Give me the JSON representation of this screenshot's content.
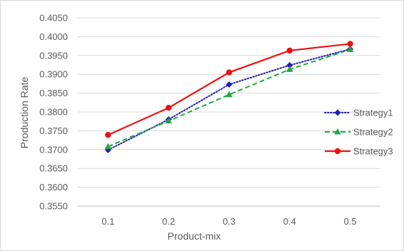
{
  "chart_data": {
    "type": "line",
    "title": "",
    "xlabel": "Product-mix",
    "ylabel": "Production Rate",
    "categories": [
      "0.1",
      "0.2",
      "0.3",
      "0.4",
      "0.5"
    ],
    "ylim": [
      0.355,
      0.405
    ],
    "ytick_step": 0.005,
    "yticks": [
      "0.3550",
      "0.3600",
      "0.3650",
      "0.3700",
      "0.3750",
      "0.3800",
      "0.3850",
      "0.3900",
      "0.3950",
      "0.4000",
      "0.4050"
    ],
    "grid": "horizontal",
    "legend_position": "right",
    "series": [
      {
        "name": "Strategy1",
        "values": [
          0.3699,
          0.378,
          0.3873,
          0.3924,
          0.3967
        ],
        "color": "#1f1fb4",
        "line_style": "dotted",
        "marker": "diamond"
      },
      {
        "name": "Strategy2",
        "values": [
          0.3708,
          0.3776,
          0.3846,
          0.3913,
          0.3966
        ],
        "color": "#22a845",
        "line_style": "dashed",
        "marker": "triangle"
      },
      {
        "name": "Strategy3",
        "values": [
          0.3739,
          0.3811,
          0.3905,
          0.3963,
          0.3981
        ],
        "color": "#ee1111",
        "line_style": "solid",
        "marker": "circle"
      }
    ]
  }
}
